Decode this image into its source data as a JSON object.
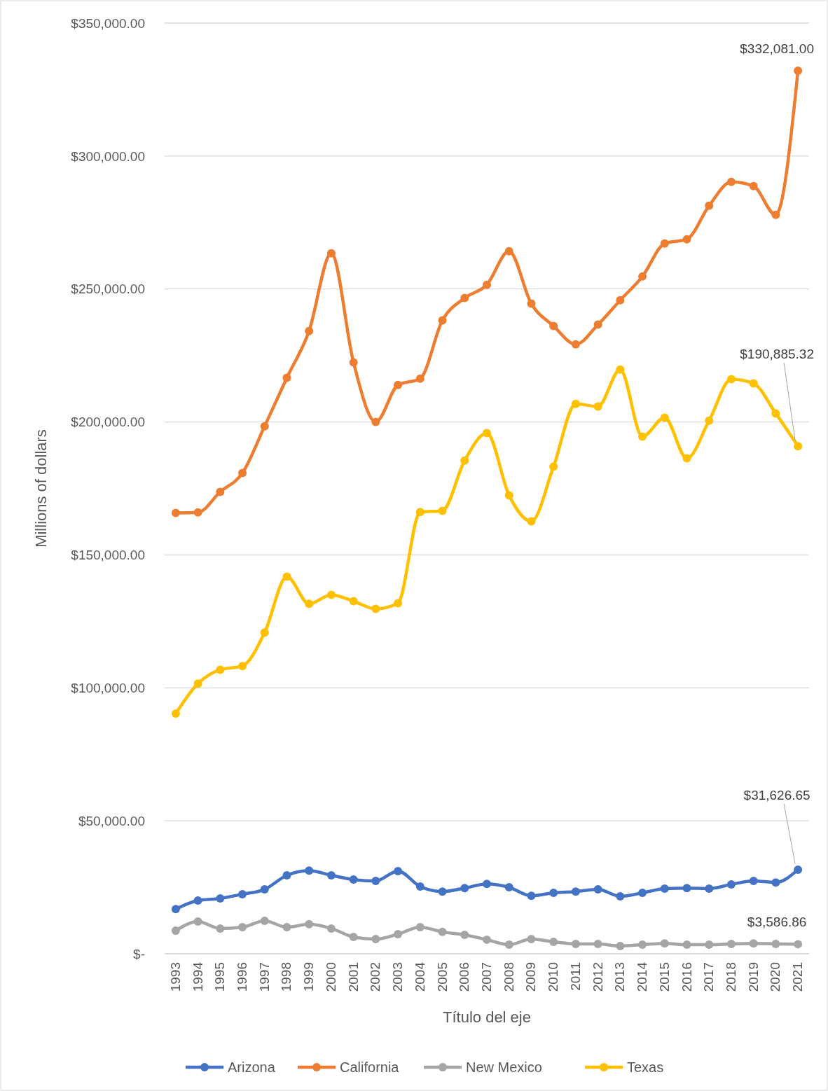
{
  "chart_data": {
    "type": "line",
    "xlabel": "Título del eje",
    "ylabel": "Millions of dollars",
    "categories": [
      "1993",
      "1994",
      "1995",
      "1996",
      "1997",
      "1998",
      "1999",
      "2000",
      "2001",
      "2002",
      "2003",
      "2004",
      "2005",
      "2006",
      "2007",
      "2008",
      "2009",
      "2010",
      "2011",
      "2012",
      "2013",
      "2014",
      "2015",
      "2016",
      "2017",
      "2018",
      "2019",
      "2020",
      "2021"
    ],
    "series": [
      {
        "name": "Arizona",
        "color": "#4472c4",
        "values": [
          16800,
          20000,
          20800,
          22400,
          24200,
          29500,
          31300,
          29500,
          27900,
          27400,
          31100,
          25300,
          23400,
          24700,
          26300,
          25000,
          21800,
          22900,
          23400,
          24200,
          21600,
          22900,
          24500,
          24700,
          24500,
          26100,
          27400,
          26800,
          31626.65
        ],
        "value_labels": [
          null,
          null,
          null,
          null,
          null,
          null,
          null,
          null,
          null,
          null,
          null,
          null,
          null,
          null,
          null,
          null,
          null,
          null,
          null,
          null,
          null,
          null,
          null,
          null,
          null,
          null,
          null,
          null,
          "$31,626.65"
        ]
      },
      {
        "name": "California",
        "color": "#ed7d31",
        "values": [
          165800,
          166000,
          173700,
          180800,
          198400,
          216600,
          234200,
          263400,
          222400,
          200000,
          213900,
          216300,
          238200,
          246600,
          251600,
          264200,
          244500,
          236100,
          229200,
          236600,
          245800,
          254700,
          267100,
          268700,
          281300,
          290300,
          288700,
          277900,
          332081
        ],
        "value_labels": [
          null,
          null,
          null,
          null,
          null,
          null,
          null,
          null,
          null,
          null,
          null,
          null,
          null,
          null,
          null,
          null,
          null,
          null,
          null,
          null,
          null,
          null,
          null,
          null,
          null,
          null,
          null,
          null,
          "$332,081.00"
        ]
      },
      {
        "name": "New Mexico",
        "color": "#a5a5a5",
        "values": [
          8700,
          12100,
          9500,
          10000,
          12400,
          10000,
          11100,
          9500,
          6300,
          5500,
          7400,
          10000,
          8200,
          7100,
          5300,
          3400,
          5500,
          4500,
          3700,
          3700,
          2900,
          3400,
          3900,
          3400,
          3400,
          3700,
          3900,
          3700,
          3586.86
        ],
        "value_labels": [
          null,
          null,
          null,
          null,
          null,
          null,
          null,
          null,
          null,
          null,
          null,
          null,
          null,
          null,
          null,
          null,
          null,
          null,
          null,
          null,
          null,
          null,
          null,
          null,
          null,
          null,
          null,
          null,
          "$3,586.86"
        ]
      },
      {
        "name": "Texas",
        "color": "#ffc000",
        "values": [
          90300,
          101600,
          106800,
          108200,
          120800,
          141800,
          131600,
          135000,
          132600,
          129700,
          131800,
          166100,
          166600,
          185500,
          195800,
          172400,
          162600,
          183200,
          206800,
          205800,
          219700,
          194500,
          201600,
          186300,
          200500,
          216100,
          214500,
          203200,
          190885.32
        ],
        "value_labels": [
          null,
          null,
          null,
          null,
          null,
          null,
          null,
          null,
          null,
          null,
          null,
          null,
          null,
          null,
          null,
          null,
          null,
          null,
          null,
          null,
          null,
          null,
          null,
          null,
          null,
          null,
          null,
          null,
          "$190,885.32"
        ]
      }
    ],
    "ylim": [
      0,
      350000
    ],
    "yticks": [
      {
        "value": 0,
        "label": "$-"
      },
      {
        "value": 50000,
        "label": "$50,000.00"
      },
      {
        "value": 100000,
        "label": "$100,000.00"
      },
      {
        "value": 150000,
        "label": "$150,000.00"
      },
      {
        "value": 200000,
        "label": "$200,000.00"
      },
      {
        "value": 250000,
        "label": "$250,000.00"
      },
      {
        "value": 300000,
        "label": "$300,000.00"
      },
      {
        "value": 350000,
        "label": "$350,000.00"
      }
    ],
    "grid": "y",
    "legend": "bottom",
    "marker": "circle",
    "line_style": "solid"
  }
}
